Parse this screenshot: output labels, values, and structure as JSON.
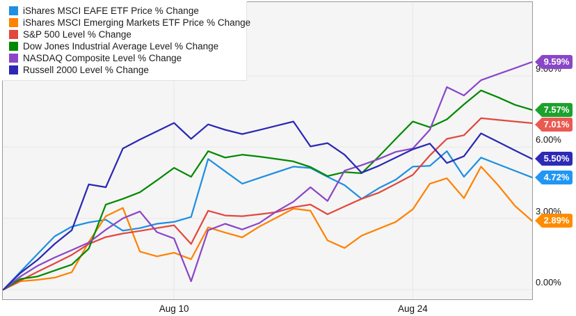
{
  "chart_data": {
    "type": "line",
    "title": "",
    "xlabel": "",
    "ylabel": "",
    "ylim": [
      -0.45,
      12.55
    ],
    "grid": true,
    "legend_position": "top-left",
    "x_dates": [
      "Jul 31",
      "Aug 1",
      "Aug 2",
      "Aug 3",
      "Aug 4",
      "Aug 5",
      "Aug 6",
      "Aug 7",
      "Aug 8",
      "Aug 9",
      "Aug 10",
      "Aug 11",
      "Aug 12",
      "Aug 13",
      "Aug 14",
      "Aug 15",
      "Aug 16",
      "Aug 17",
      "Aug 18",
      "Aug 19",
      "Aug 20",
      "Aug 21",
      "Aug 22",
      "Aug 23",
      "Aug 24",
      "Aug 25",
      "Aug 26",
      "Aug 27",
      "Aug 28",
      "Aug 29",
      "Aug 30",
      "Aug 31"
    ],
    "x_ticks": [
      {
        "index": 10,
        "label": "Aug 10"
      },
      {
        "index": 24,
        "label": "Aug 24"
      }
    ],
    "y_ticks": [
      {
        "value": 9,
        "label": "9.00%"
      },
      {
        "value": 6,
        "label": "6.00%"
      },
      {
        "value": 3,
        "label": "3.00%"
      },
      {
        "value": 0,
        "label": "0.00%"
      }
    ],
    "series": [
      {
        "id": "eafe",
        "name": "iShares MSCI EAFE ETF Price % Change",
        "color": "#1E8FE1",
        "badge_color": "#2196F3",
        "final_label": "4.72%",
        "values": [
          0,
          0.75,
          1.5,
          2.24,
          2.65,
          2.83,
          2.94,
          2.48,
          2.59,
          2.77,
          2.85,
          3.06,
          5.5,
          4.98,
          4.46,
          4.7,
          4.94,
          5.18,
          5.12,
          4.75,
          4.4,
          3.82,
          4.27,
          4.63,
          5.18,
          5.21,
          5.83,
          4.75,
          5.56,
          5.28,
          5.0,
          4.72
        ]
      },
      {
        "id": "eem",
        "name": "iShares MSCI Emerging Markets ETF Price % Change",
        "color": "#FF8200",
        "badge_color": "#FF8C00",
        "final_label": "2.89%",
        "values": [
          0,
          0.35,
          0.41,
          0.5,
          0.73,
          2.0,
          3.09,
          3.44,
          1.6,
          1.4,
          1.55,
          1.28,
          2.62,
          2.4,
          2.2,
          2.65,
          3.03,
          3.41,
          3.32,
          2.07,
          1.75,
          2.27,
          2.56,
          2.85,
          3.38,
          4.46,
          4.69,
          3.85,
          5.18,
          4.4,
          3.52,
          2.89
        ]
      },
      {
        "id": "spx",
        "name": "S&P 500 Level % Change",
        "color": "#E2483D",
        "badge_color": "#EA5A52",
        "final_label": "7.01%",
        "values": [
          0,
          0.38,
          0.75,
          1.1,
          1.46,
          1.92,
          2.21,
          2.36,
          2.47,
          2.59,
          2.71,
          1.92,
          3.32,
          3.12,
          3.09,
          3.17,
          3.26,
          3.47,
          3.58,
          3.17,
          3.5,
          3.82,
          4.08,
          4.45,
          4.83,
          5.65,
          6.35,
          6.5,
          7.22,
          7.15,
          7.08,
          7.01
        ]
      },
      {
        "id": "dow",
        "name": "Dow Jones Industrial Average Level % Change",
        "color": "#008A00",
        "badge_color": "#1CA22C",
        "final_label": "7.57%",
        "values": [
          0,
          0.45,
          0.55,
          0.8,
          1.05,
          1.72,
          3.58,
          3.82,
          4.1,
          4.6,
          5.13,
          4.75,
          5.83,
          5.56,
          5.68,
          5.6,
          5.5,
          5.4,
          5.16,
          4.78,
          4.95,
          4.9,
          5.6,
          6.35,
          7.08,
          6.84,
          7.17,
          7.8,
          8.39,
          8.1,
          7.78,
          7.57
        ]
      },
      {
        "id": "nasdaq",
        "name": "NASDAQ Composite Level % Change",
        "color": "#8A46C8",
        "badge_color": "#8A46C8",
        "final_label": "9.59%",
        "values": [
          0,
          0.55,
          1.0,
          1.35,
          1.66,
          1.98,
          2.52,
          3.0,
          3.29,
          2.42,
          2.15,
          0.35,
          2.5,
          2.77,
          2.53,
          2.8,
          3.29,
          3.7,
          4.31,
          3.73,
          5.01,
          5.24,
          5.5,
          5.8,
          5.94,
          6.73,
          8.53,
          8.18,
          8.82,
          9.08,
          9.33,
          9.59
        ]
      },
      {
        "id": "russell",
        "name": "Russell 2000 Level % Change",
        "color": "#2A28B4",
        "badge_color": "#2D2BB5",
        "final_label": "5.50%",
        "values": [
          0,
          0.7,
          1.25,
          1.92,
          2.5,
          4.43,
          4.31,
          5.94,
          6.32,
          6.67,
          7.02,
          6.35,
          6.96,
          6.73,
          6.55,
          6.72,
          6.9,
          7.08,
          6.03,
          6.17,
          5.68,
          4.92,
          5.21,
          5.56,
          5.91,
          6.15,
          5.33,
          5.62,
          6.58,
          6.22,
          5.86,
          5.5
        ]
      }
    ],
    "style": {
      "plot_bg": "#f5f5f5",
      "grid_color": "#e7e7e7",
      "border_color": "#999999",
      "text_color": "#111111"
    }
  }
}
